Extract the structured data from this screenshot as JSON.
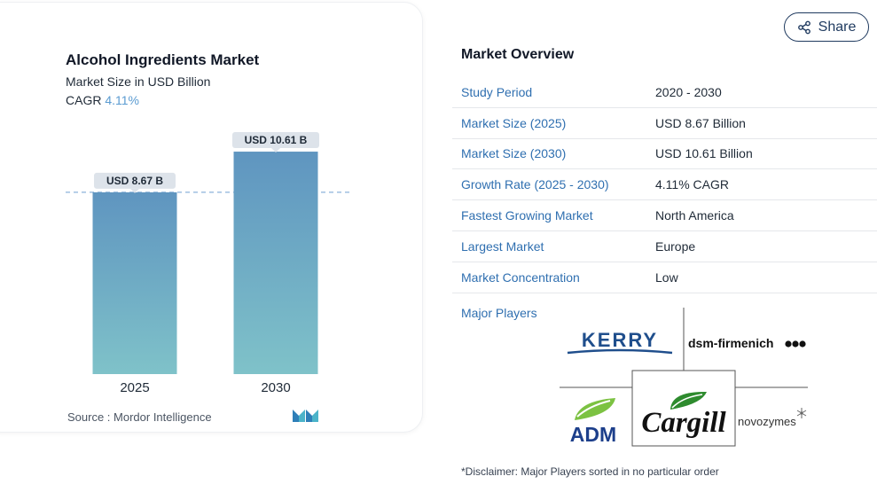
{
  "chart": {
    "title": "Alcohol Ingredients Market",
    "subtitle": "Market Size in USD Billion",
    "cagr_label": "CAGR",
    "cagr_value": "4.11%",
    "source": "Source : Mordor Intelligence"
  },
  "chart_data": {
    "type": "bar",
    "categories": [
      "2025",
      "2030"
    ],
    "values": [
      8.67,
      10.61
    ],
    "data_labels": [
      "USD 8.67 B",
      "USD 10.61 B"
    ],
    "ylim": [
      0,
      11.5
    ],
    "reference_line": 8.67,
    "colors": {
      "bar_top": "#5f95c0",
      "bar_bottom": "#7fc2c9",
      "label_bg": "#dde3ea",
      "ref_line": "#9fbfe0"
    }
  },
  "share": {
    "label": "Share",
    "icon": "share-icon"
  },
  "overview": {
    "title": "Market Overview",
    "rows": [
      {
        "label": "Study Period",
        "value": "2020 - 2030"
      },
      {
        "label": "Market Size (2025)",
        "value": "USD 8.67 Billion"
      },
      {
        "label": "Market Size (2030)",
        "value": "USD 10.61 Billion"
      },
      {
        "label": "Growth Rate (2025 - 2030)",
        "value": "4.11% CAGR"
      },
      {
        "label": "Fastest Growing Market",
        "value": "North America"
      },
      {
        "label": "Largest Market",
        "value": "Europe"
      },
      {
        "label": "Market Concentration",
        "value": "Low"
      }
    ],
    "major_players_label": "Major Players",
    "players": {
      "kerry": "KERRY",
      "dsm": "dsm-firmenich",
      "adm": "ADM",
      "cargill": "Cargill",
      "novozymes": "novozymes"
    },
    "disclaimer": "*Disclaimer: Major Players sorted in no particular order"
  },
  "colors": {
    "accent": "#2f6fb0",
    "dark": "#1f3a5f"
  }
}
